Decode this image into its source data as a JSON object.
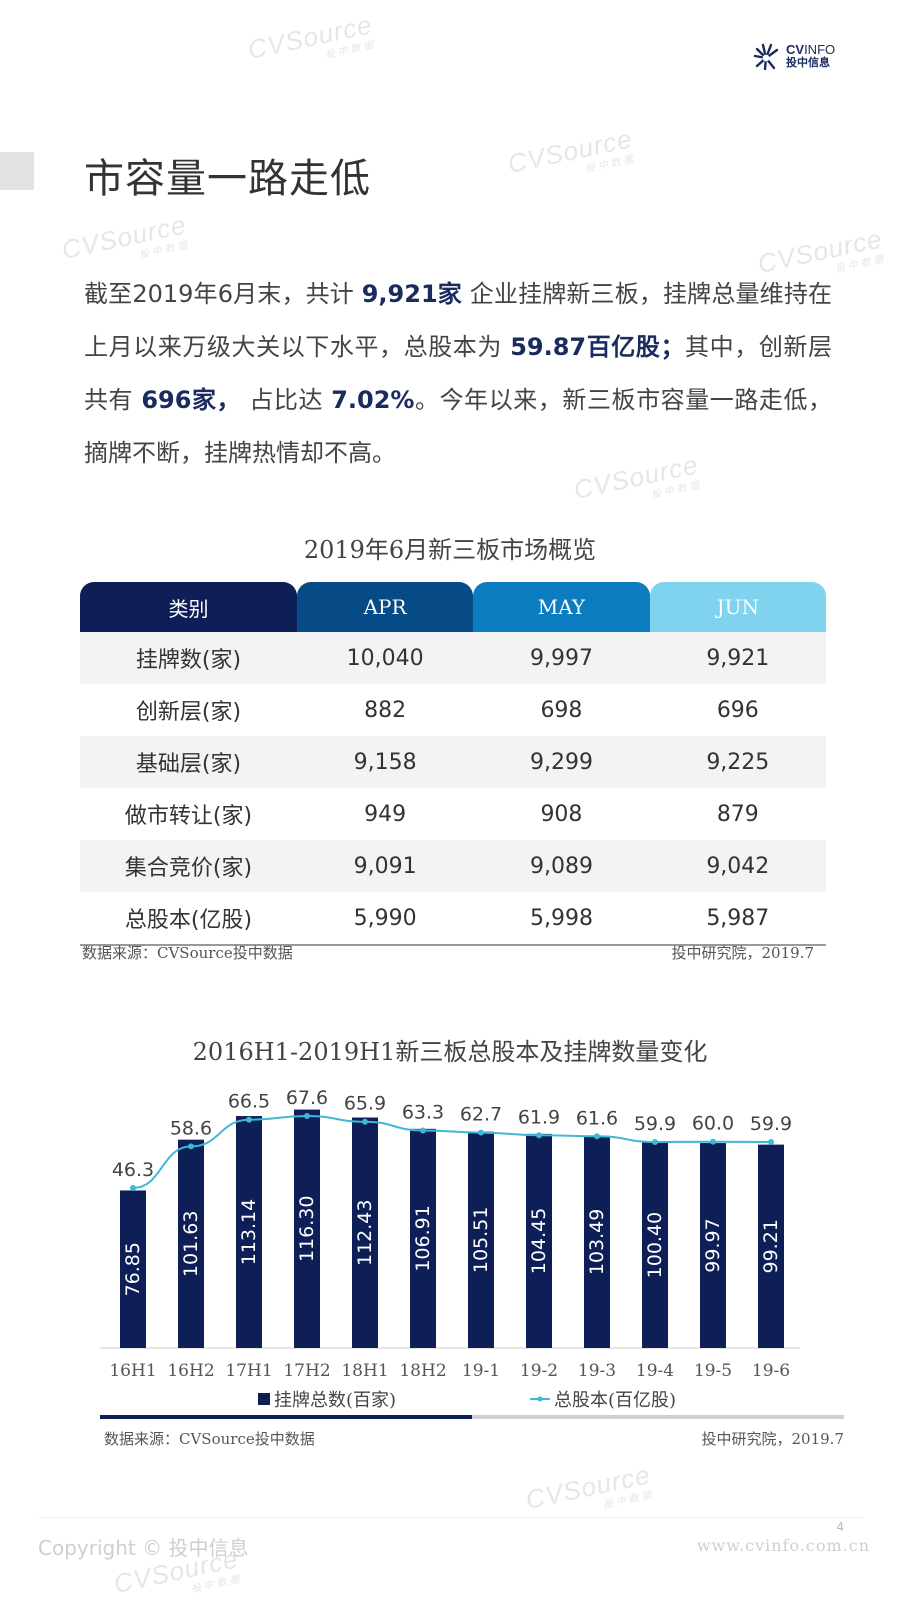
{
  "watermark": {
    "text": "CVSource",
    "sub": "投中数据"
  },
  "logo": {
    "name_bold": "CV",
    "name_light": "INFO",
    "name_cn": "投中信息"
  },
  "page_title": "市容量一路走低",
  "intro": {
    "p1": "截至2019年6月末，共计 ",
    "h1": "9,921家",
    "p2": " 企业挂牌新三板，挂牌总量维持在上月以来万级大关以下水平，总股本为 ",
    "h2": "59.87百亿股；",
    "p3": "其中，创新层共有 ",
    "h3": "696家，",
    "p4": " 占比达 ",
    "h4": "7.02%",
    "p5": "。今年以来，新三板市容量一路走低，摘牌不断，挂牌热情却不高。"
  },
  "table": {
    "title": "2019年6月新三板市场概览",
    "headers": [
      "类别",
      "APR",
      "MAY",
      "JUN"
    ],
    "header_colors": [
      "#0d1f56",
      "#064a86",
      "#0b7cc0",
      "#7fd3ee"
    ],
    "rows": [
      {
        "label": "挂牌数(家)",
        "values": [
          "10,040",
          "9,997",
          "9,921"
        ]
      },
      {
        "label": "创新层(家)",
        "values": [
          "882",
          "698",
          "696"
        ]
      },
      {
        "label": "基础层(家)",
        "values": [
          "9,158",
          "9,299",
          "9,225"
        ]
      },
      {
        "label": "做市转让(家)",
        "values": [
          "949",
          "908",
          "879"
        ]
      },
      {
        "label": "集合竞价(家)",
        "values": [
          "9,091",
          "9,089",
          "9,042"
        ]
      },
      {
        "label": "总股本(亿股)",
        "values": [
          "5,990",
          "5,998",
          "5,987"
        ]
      }
    ],
    "source": "数据来源：CVSource投中数据",
    "credit": "投中研究院，2019.7"
  },
  "chart_data": {
    "type": "bar",
    "title": "2016H1-2019H1新三板总股本及挂牌数量变化",
    "categories": [
      "16H1",
      "16H2",
      "17H1",
      "17H2",
      "18H1",
      "18H2",
      "19-1",
      "19-2",
      "19-3",
      "19-4",
      "19-5",
      "19-6"
    ],
    "series": [
      {
        "name": "挂牌总数(百家)",
        "type": "bar",
        "color": "#0d1f56",
        "values": [
          76.85,
          101.63,
          113.14,
          116.3,
          112.43,
          106.91,
          105.51,
          104.45,
          103.49,
          100.4,
          99.97,
          99.21
        ]
      },
      {
        "name": "总股本(百亿股)",
        "type": "line",
        "color": "#3fb8d8",
        "values": [
          46.3,
          58.6,
          66.5,
          67.6,
          65.9,
          63.3,
          62.7,
          61.9,
          61.6,
          59.9,
          60.0,
          59.9
        ]
      }
    ],
    "legend_position": "bottom",
    "grid": false
  },
  "chart_footer": {
    "source": "数据来源：CVSource投中数据",
    "credit": "投中研究院，2019.7",
    "progress": 0.5
  },
  "footer": {
    "copyright": "Copyright © 投中信息",
    "page_number": "4",
    "website": "www.cvinfo.com.cn"
  }
}
